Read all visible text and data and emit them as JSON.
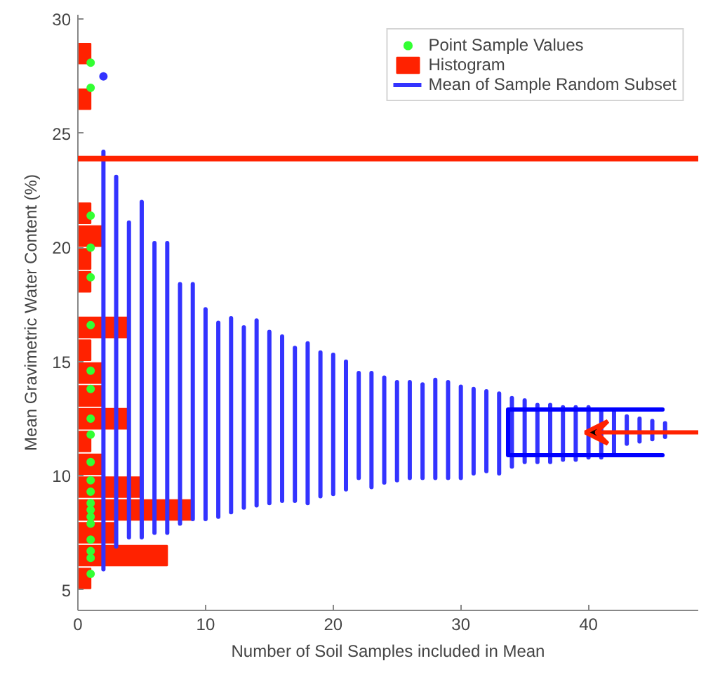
{
  "chart_data": {
    "type": "histogram",
    "orientation": "horizontal",
    "xlabel": "Number of Soil Samples included in Mean",
    "ylabel": "Mean Gravimetric Water Content (%)",
    "xlim": [
      0,
      48.6
    ],
    "ylim": [
      4.1,
      30.2
    ],
    "xticks": [
      0,
      10,
      20,
      30,
      40
    ],
    "yticks": [
      5,
      10,
      15,
      20,
      25,
      30
    ],
    "grid": false,
    "legend": "top right",
    "series": [
      {
        "type": "scatter",
        "name": "Point Sample Values",
        "color": "#33ff33",
        "marker": "circle",
        "x": [
          28.1,
          27.0,
          21.4,
          20.0,
          18.7,
          16.6,
          14.6,
          13.8,
          12.5,
          11.8,
          10.6,
          9.8,
          9.3,
          8.8,
          8.5,
          8.2,
          7.9,
          7.2,
          6.7,
          6.4,
          5.7
        ],
        "values": [
          1,
          1,
          1,
          1,
          1,
          1,
          1,
          1,
          1,
          1,
          1,
          1,
          1,
          1,
          1,
          1,
          1,
          1,
          1,
          1,
          1
        ]
      },
      {
        "name": "Histogram",
        "color": "#ff2200",
        "bins": [
          5,
          6,
          7,
          8,
          9,
          10,
          11,
          12,
          13,
          14,
          15,
          16,
          17,
          18,
          19,
          20,
          21,
          22,
          23,
          24,
          25,
          26,
          27,
          28,
          29
        ],
        "values": [
          1,
          7,
          3,
          9,
          5,
          2,
          1,
          4,
          2,
          2,
          1,
          4,
          0,
          1,
          1,
          2,
          1,
          0,
          0,
          0,
          0,
          1,
          0,
          1
        ]
      },
      {
        "type": "line",
        "name": "Mean of Sample Random Subset",
        "color": "#3333ff",
        "x": [
          5.9,
          24.2
        ],
        "values": [
          2,
          2
        ]
      },
      {
        "type": "line",
        "color": "#3333ff",
        "x": [
          6.9,
          23.1
        ],
        "values": [
          3,
          3
        ]
      },
      {
        "type": "line",
        "color": "#3333ff",
        "x": [
          7.3,
          21.1
        ],
        "values": [
          4,
          4
        ]
      },
      {
        "type": "line",
        "color": "#3333ff",
        "x": [
          7.3,
          22.0
        ],
        "values": [
          5,
          5
        ]
      },
      {
        "type": "line",
        "color": "#3333ff",
        "x": [
          7.5,
          20.2
        ],
        "values": [
          6,
          6
        ]
      },
      {
        "type": "line",
        "color": "#3333ff",
        "x": [
          7.5,
          20.2
        ],
        "values": [
          7,
          7
        ]
      },
      {
        "type": "line",
        "color": "#3333ff",
        "x": [
          7.9,
          18.4
        ],
        "values": [
          8,
          8
        ]
      },
      {
        "type": "line",
        "color": "#3333ff",
        "x": [
          8.1,
          18.4
        ],
        "values": [
          9,
          9
        ]
      },
      {
        "type": "line",
        "color": "#3333ff",
        "x": [
          8.1,
          17.3
        ],
        "values": [
          10,
          10
        ]
      },
      {
        "type": "line",
        "color": "#3333ff",
        "x": [
          8.2,
          16.7
        ],
        "values": [
          11,
          11
        ]
      },
      {
        "type": "line",
        "color": "#3333ff",
        "x": [
          8.4,
          16.9
        ],
        "values": [
          12,
          12
        ]
      },
      {
        "type": "line",
        "color": "#3333ff",
        "x": [
          8.6,
          16.5
        ],
        "values": [
          13,
          13
        ]
      },
      {
        "type": "line",
        "color": "#3333ff",
        "x": [
          8.7,
          16.8
        ],
        "values": [
          14,
          14
        ]
      },
      {
        "type": "line",
        "color": "#3333ff",
        "x": [
          8.8,
          16.3
        ],
        "values": [
          15,
          15
        ]
      },
      {
        "type": "line",
        "color": "#3333ff",
        "x": [
          8.9,
          16.1
        ],
        "values": [
          16,
          16
        ]
      },
      {
        "type": "line",
        "color": "#3333ff",
        "x": [
          8.9,
          15.6
        ],
        "values": [
          17,
          17
        ]
      },
      {
        "type": "line",
        "color": "#3333ff",
        "x": [
          8.8,
          15.8
        ],
        "values": [
          18,
          18
        ]
      },
      {
        "type": "line",
        "color": "#3333ff",
        "x": [
          9.1,
          15.4
        ],
        "values": [
          19,
          19
        ]
      },
      {
        "type": "line",
        "color": "#3333ff",
        "x": [
          9.2,
          15.3
        ],
        "values": [
          20,
          20
        ]
      },
      {
        "type": "line",
        "color": "#3333ff",
        "x": [
          9.4,
          15.0
        ],
        "values": [
          21,
          21
        ]
      },
      {
        "type": "line",
        "color": "#3333ff",
        "x": [
          9.9,
          14.5
        ],
        "values": [
          22,
          22
        ]
      },
      {
        "type": "line",
        "color": "#3333ff",
        "x": [
          9.5,
          14.5
        ],
        "values": [
          23,
          23
        ]
      },
      {
        "type": "line",
        "color": "#3333ff",
        "x": [
          9.7,
          14.3
        ],
        "values": [
          24,
          24
        ]
      },
      {
        "type": "line",
        "color": "#3333ff",
        "x": [
          9.8,
          14.1
        ],
        "values": [
          25,
          25
        ]
      },
      {
        "type": "line",
        "color": "#3333ff",
        "x": [
          9.9,
          14.1
        ],
        "values": [
          26,
          26
        ]
      },
      {
        "type": "line",
        "color": "#3333ff",
        "x": [
          9.9,
          14.0
        ],
        "values": [
          27,
          27
        ]
      },
      {
        "type": "line",
        "color": "#3333ff",
        "x": [
          9.9,
          14.2
        ],
        "values": [
          28,
          28
        ]
      },
      {
        "type": "line",
        "color": "#3333ff",
        "x": [
          9.9,
          14.1
        ],
        "values": [
          29,
          29
        ]
      },
      {
        "type": "line",
        "color": "#3333ff",
        "x": [
          9.9,
          13.9
        ],
        "values": [
          30,
          30
        ]
      },
      {
        "type": "line",
        "color": "#3333ff",
        "x": [
          10.1,
          13.8
        ],
        "values": [
          31,
          31
        ]
      },
      {
        "type": "line",
        "color": "#3333ff",
        "x": [
          10.2,
          13.7
        ],
        "values": [
          32,
          32
        ]
      },
      {
        "type": "line",
        "color": "#3333ff",
        "x": [
          10.1,
          13.6
        ],
        "values": [
          33,
          33
        ]
      },
      {
        "type": "line",
        "color": "#3333ff",
        "x": [
          10.4,
          13.4
        ],
        "values": [
          34,
          34
        ]
      },
      {
        "type": "line",
        "color": "#3333ff",
        "x": [
          10.6,
          13.3
        ],
        "values": [
          35,
          35
        ]
      },
      {
        "type": "line",
        "color": "#3333ff",
        "x": [
          10.6,
          13.1
        ],
        "values": [
          36,
          36
        ]
      },
      {
        "type": "line",
        "color": "#3333ff",
        "x": [
          10.6,
          13.1
        ],
        "values": [
          37,
          37
        ]
      },
      {
        "type": "line",
        "color": "#3333ff",
        "x": [
          10.7,
          13.0
        ],
        "values": [
          38,
          38
        ]
      },
      {
        "type": "line",
        "color": "#3333ff",
        "x": [
          10.7,
          13.0
        ],
        "values": [
          39,
          39
        ]
      },
      {
        "type": "line",
        "color": "#3333ff",
        "x": [
          10.8,
          13.0
        ],
        "values": [
          40,
          40
        ]
      },
      {
        "type": "line",
        "color": "#3333ff",
        "x": [
          10.8,
          12.9
        ],
        "values": [
          41,
          41
        ]
      },
      {
        "type": "line",
        "color": "#3333ff",
        "x": [
          10.9,
          12.9
        ],
        "values": [
          42,
          42
        ]
      },
      {
        "type": "line",
        "color": "#3333ff",
        "x": [
          11.4,
          12.6
        ],
        "values": [
          43,
          43
        ]
      },
      {
        "type": "line",
        "color": "#3333ff",
        "x": [
          11.5,
          12.5
        ],
        "values": [
          44,
          44
        ]
      },
      {
        "type": "line",
        "color": "#3333ff",
        "x": [
          11.6,
          12.4
        ],
        "values": [
          45,
          45
        ]
      },
      {
        "type": "line",
        "color": "#3333ff",
        "x": [
          11.7,
          12.3
        ],
        "values": [
          46,
          46
        ]
      },
      {
        "type": "scatter",
        "color": "#3333ff",
        "marker": "circle",
        "x": [
          27.5
        ],
        "values": [
          2
        ]
      },
      {
        "type": "line",
        "color": "#0000ff",
        "x": [
          12.9,
          12.9,
          10.9,
          10.9
        ],
        "values": [
          45.8,
          33.7,
          33.7,
          45.8
        ]
      }
    ],
    "ref_lines": [
      {
        "axis": "y",
        "value": 23.9,
        "color": "#ff2200"
      }
    ]
  }
}
